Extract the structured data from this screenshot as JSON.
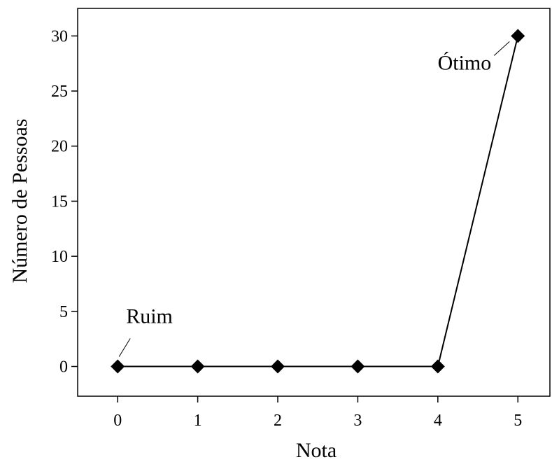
{
  "chart_data": {
    "type": "line",
    "xlabel": "Nota",
    "ylabel": "Número de Pessoas",
    "x": [
      0,
      1,
      2,
      3,
      4,
      5
    ],
    "series": [
      {
        "values": [
          0,
          0,
          0,
          0,
          0,
          30
        ]
      }
    ],
    "xlim": [
      -0.5,
      5.4
    ],
    "ylim": [
      -2.7,
      32.5
    ],
    "xticks": [
      0,
      1,
      2,
      3,
      4,
      5
    ],
    "yticks": [
      0,
      5,
      10,
      15,
      20,
      25,
      30
    ],
    "grid": false,
    "legend": "none",
    "marker": "diamond",
    "color": "#000000",
    "annotations": [
      {
        "text": "Ruim",
        "x": 0,
        "y": 0
      },
      {
        "text": "Ótimo",
        "x": 5,
        "y": 30
      }
    ]
  }
}
